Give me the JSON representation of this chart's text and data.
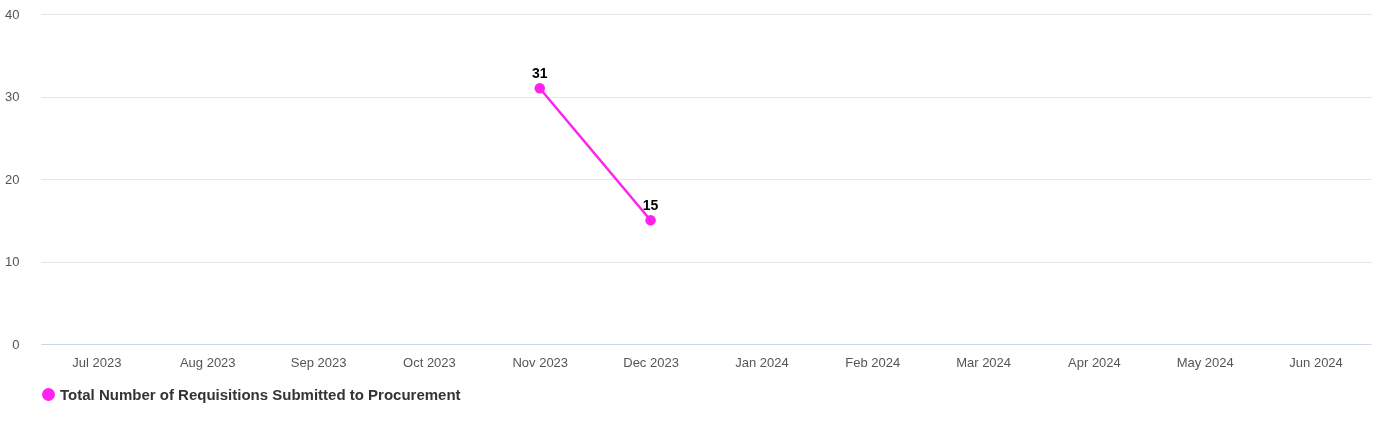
{
  "chart_data": {
    "type": "line",
    "categories": [
      "Jul 2023",
      "Aug 2023",
      "Sep 2023",
      "Oct 2023",
      "Nov 2023",
      "Dec 2023",
      "Jan 2024",
      "Feb 2024",
      "Mar 2024",
      "Apr 2024",
      "May 2024",
      "Jun 2024"
    ],
    "series": [
      {
        "name": "Total Number of Requisitions Submitted to Procurement",
        "color": "#ff22ee",
        "values": [
          null,
          null,
          null,
          null,
          31,
          15,
          null,
          null,
          null,
          null,
          null,
          null
        ]
      }
    ],
    "ylim": [
      0,
      40
    ],
    "yticks": [
      0,
      10,
      20,
      30,
      40
    ],
    "grid": "y",
    "legend": "bottom",
    "marker": "circle",
    "line_style": "solid",
    "data_labels": true
  }
}
